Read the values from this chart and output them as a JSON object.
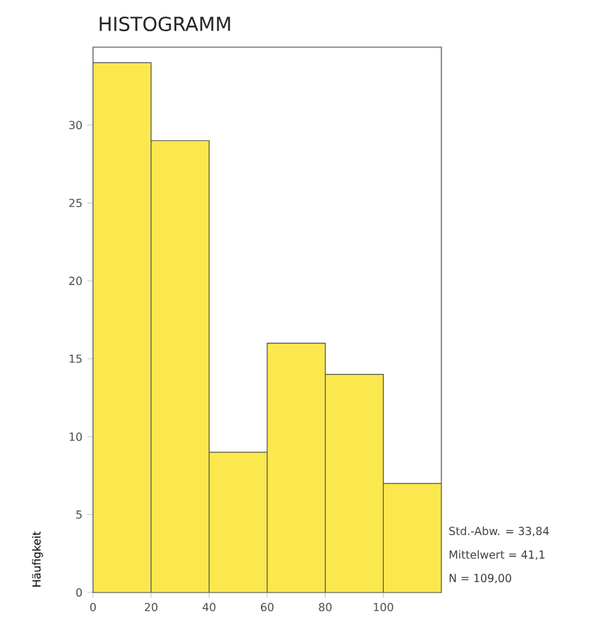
{
  "chart_data": {
    "type": "histogram",
    "title": "HISTOGRAMM",
    "ylabel": "Häufigkeit",
    "bins": [
      0,
      20,
      40,
      60,
      80,
      100,
      120
    ],
    "values": [
      34,
      29,
      9,
      16,
      14,
      7
    ],
    "color": "#fbe84f",
    "xlim": [
      0,
      120
    ],
    "ylim": [
      0,
      35
    ],
    "xticks": [
      0,
      20,
      40,
      60,
      80,
      100
    ],
    "yticks": [
      0,
      5,
      10,
      15,
      20,
      25,
      30
    ],
    "annotations": [
      "Std.-Abw. = 33,84",
      "Mittelwert = 41,1",
      "N = 109,00"
    ]
  }
}
